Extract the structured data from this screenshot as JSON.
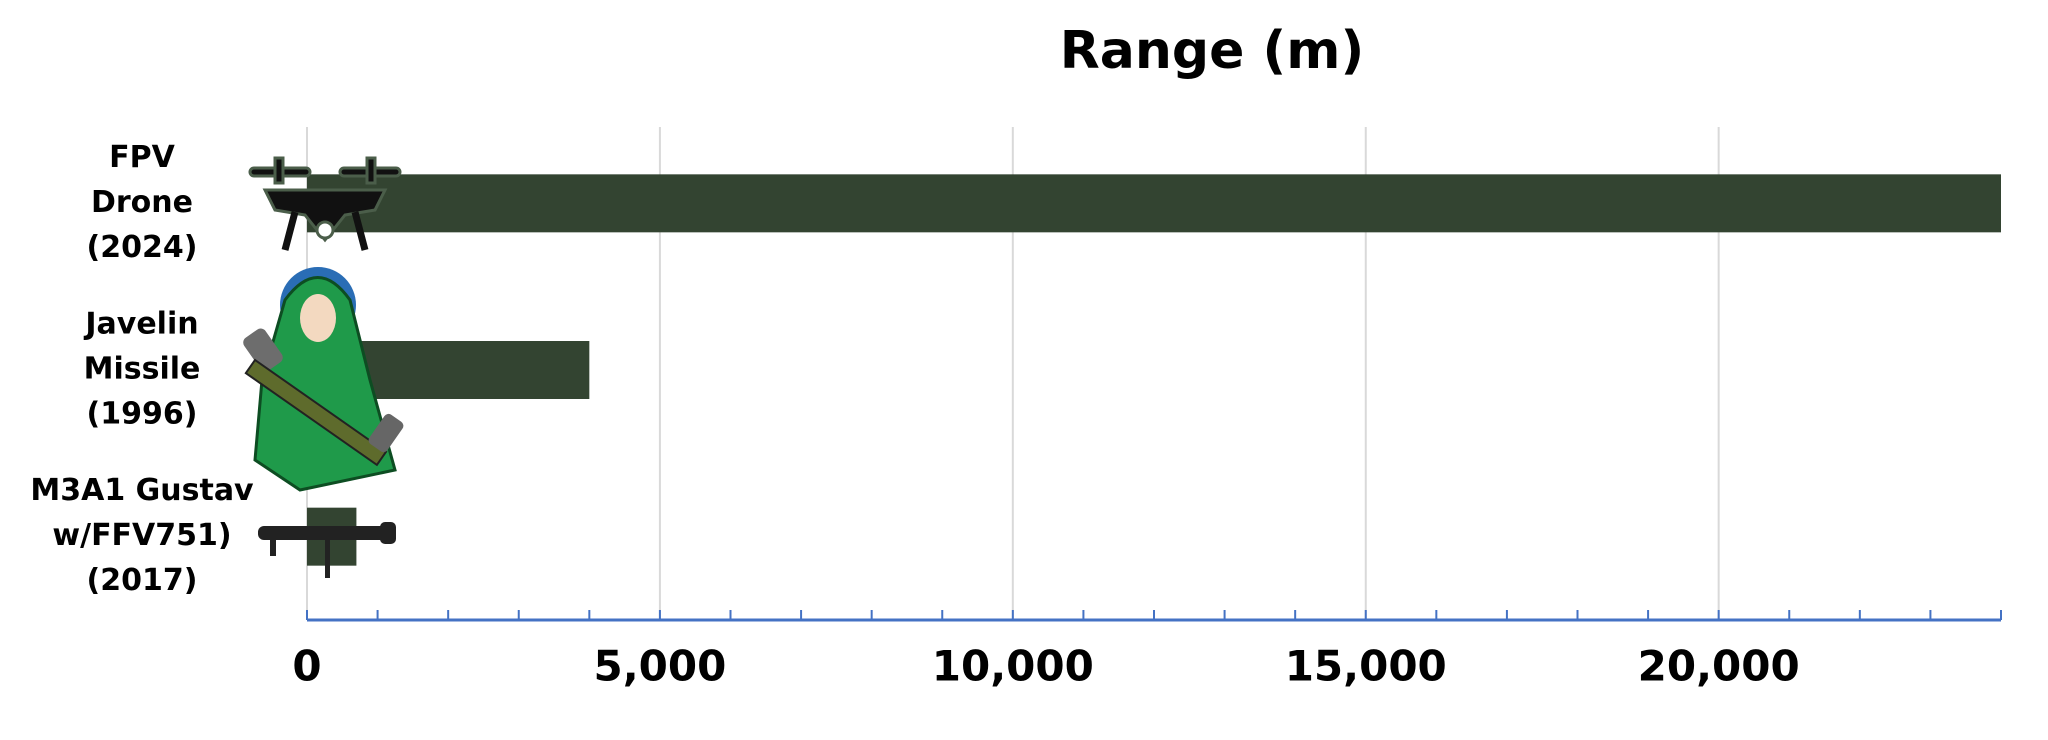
{
  "chart_data": {
    "type": "bar",
    "orientation": "horizontal",
    "title": "Range (m)",
    "categories": [
      [
        "FPV",
        "Drone",
        "(2024)"
      ],
      [
        "Javelin",
        "Missile",
        "(1996)"
      ],
      [
        "M3A1 Gustav",
        "w/FFV751)",
        "(2017)"
      ]
    ],
    "values": [
      24000,
      4000,
      700
    ],
    "color": "#334431",
    "xlim": [
      0,
      24000
    ],
    "xticks": [
      0,
      {
        "value": 5000,
        "label": "5,000"
      },
      {
        "value": 10000,
        "label": "10,000"
      },
      {
        "value": 15000,
        "label": "15,000"
      },
      {
        "value": 20000,
        "label": "20,000"
      }
    ],
    "xminorticks": [
      0,
      1000,
      2000,
      3000,
      4000,
      5000,
      6000,
      7000,
      8000,
      9000,
      10000,
      11000,
      12000,
      13000,
      14000,
      15000,
      16000,
      17000,
      18000,
      19000,
      20000,
      21000,
      22000,
      23000,
      24000
    ],
    "grid": true,
    "axis_color": "#4472c4"
  }
}
